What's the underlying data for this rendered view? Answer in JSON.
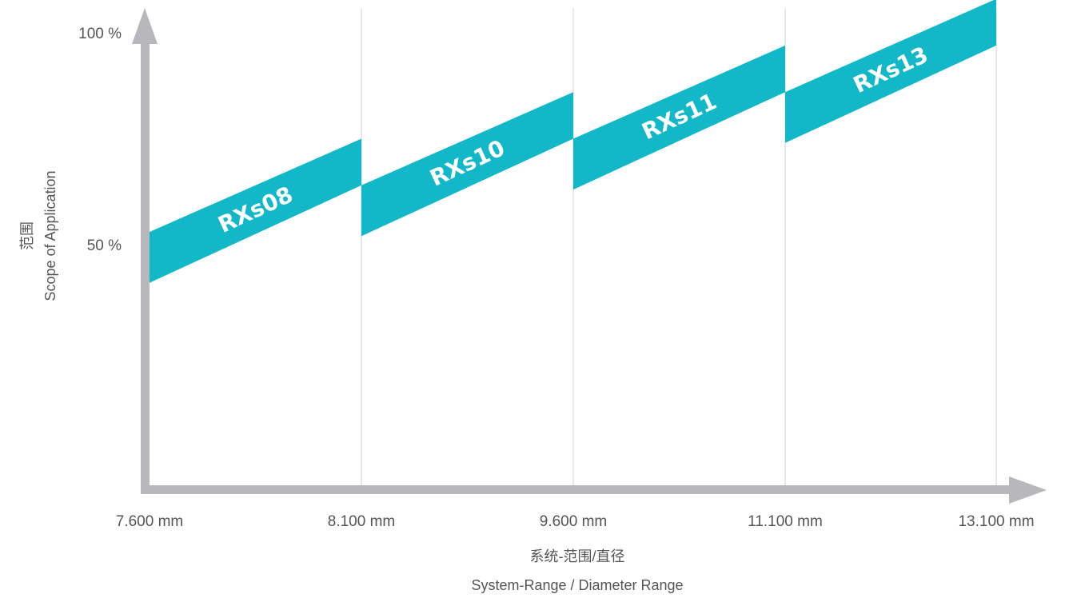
{
  "chart_data": {
    "type": "area",
    "x_ticks": [
      "7.600 mm",
      "8.100 mm",
      "9.600 mm",
      "11.100 mm",
      "13.100 mm"
    ],
    "y_ticks": [
      {
        "value": 50,
        "label": "50 %"
      },
      {
        "value": 100,
        "label": "100 %"
      }
    ],
    "ylim": [
      0,
      100
    ],
    "grid": "vertical",
    "xlabel_cn": "系统-范围/直径",
    "xlabel": "System-Range / Diameter Range",
    "ylabel_cn": "范围",
    "ylabel": "Scope of Application",
    "band_color": "#12b8c8",
    "axis_color": "#b8b8bc",
    "series": [
      {
        "name": "RXs08",
        "x_start": 0,
        "x_end": 1,
        "y_start": [
          41,
          53
        ],
        "y_end": [
          64,
          75
        ]
      },
      {
        "name": "RXs10",
        "x_start": 1,
        "x_end": 2,
        "y_start": [
          52,
          64
        ],
        "y_end": [
          75,
          86
        ]
      },
      {
        "name": "RXs11",
        "x_start": 2,
        "x_end": 3,
        "y_start": [
          63,
          75
        ],
        "y_end": [
          86,
          97
        ]
      },
      {
        "name": "RXs13",
        "x_start": 3,
        "x_end": 4,
        "y_start": [
          74,
          86
        ],
        "y_end": [
          97,
          108
        ]
      }
    ]
  }
}
